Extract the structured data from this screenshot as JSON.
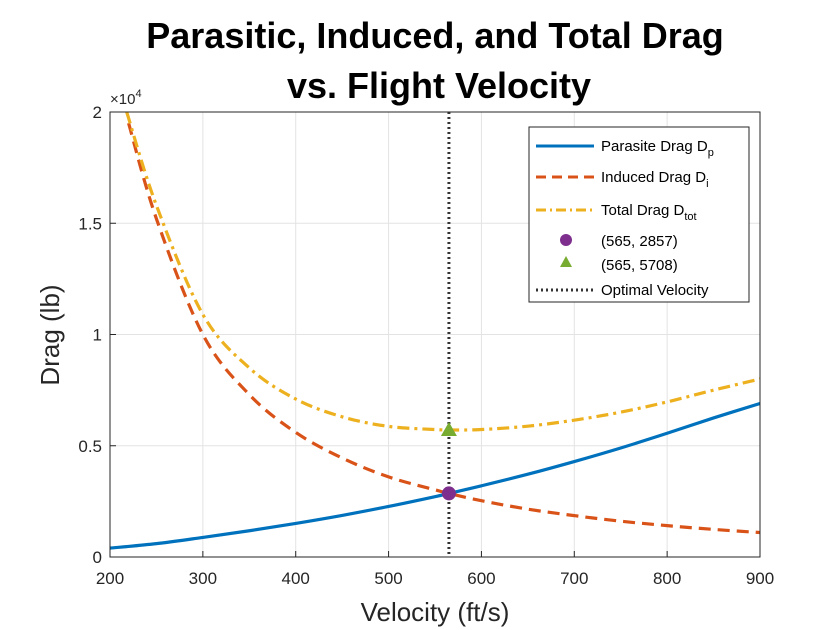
{
  "chart_data": {
    "type": "line",
    "title_line1": "Parasitic, Induced, and Total Drag",
    "title_line2": "vs. Flight Velocity",
    "xlabel": "Velocity (ft/s)",
    "ylabel": "Drag (lb)",
    "y_multiplier": "×10",
    "y_multiplier_exp": "4",
    "xlim": [
      200,
      900
    ],
    "ylim": [
      0,
      20000
    ],
    "x_ticks": [
      200,
      300,
      400,
      500,
      600,
      700,
      800,
      900
    ],
    "x_tick_labels": [
      "200",
      "300",
      "400",
      "500",
      "600",
      "700",
      "800",
      "900"
    ],
    "y_ticks": [
      0,
      5000,
      10000,
      15000,
      20000
    ],
    "y_tick_labels": [
      "0",
      "0.5",
      "1",
      "1.5",
      "2"
    ],
    "grid": true,
    "legend_position": "top-right",
    "series": [
      {
        "name": "Parasite Drag D",
        "name_sub": "p",
        "color": "#0072BD",
        "style": "solid",
        "x": [
          200,
          250,
          300,
          350,
          400,
          450,
          500,
          550,
          565,
          600,
          650,
          700,
          750,
          800,
          850,
          900
        ],
        "y": [
          400,
          600,
          880,
          1180,
          1510,
          1870,
          2270,
          2710,
          2857,
          3200,
          3720,
          4290,
          4900,
          5560,
          6250,
          6900
        ]
      },
      {
        "name": "Induced Drag D",
        "name_sub": "i",
        "color": "#D95319",
        "style": "dashed",
        "x": [
          220,
          250,
          300,
          350,
          400,
          450,
          500,
          550,
          565,
          600,
          650,
          700,
          750,
          800,
          850,
          900
        ],
        "y": [
          19500,
          15200,
          10000,
          7300,
          5600,
          4450,
          3600,
          3020,
          2857,
          2530,
          2150,
          1860,
          1610,
          1410,
          1240,
          1100
        ]
      },
      {
        "name": "Total Drag D",
        "name_sub": "tot",
        "color": "#EDB120",
        "style": "dashdot",
        "x": [
          218,
          250,
          300,
          350,
          400,
          450,
          500,
          550,
          565,
          600,
          650,
          700,
          750,
          800,
          850,
          900
        ],
        "y": [
          20000,
          15800,
          10900,
          8500,
          7100,
          6300,
          5870,
          5730,
          5708,
          5730,
          5880,
          6150,
          6510,
          6970,
          7500,
          8000
        ]
      }
    ],
    "points": [
      {
        "name": "(565, 2857)",
        "x": 565,
        "y": 2857,
        "marker": "circle",
        "color": "#7E2F8E"
      },
      {
        "name": "(565, 5708)",
        "x": 565,
        "y": 5708,
        "marker": "triangle",
        "color": "#77AC30"
      }
    ],
    "vline": {
      "name": "Optimal Velocity",
      "x": 565,
      "color": "#333333",
      "style": "dotted"
    }
  }
}
